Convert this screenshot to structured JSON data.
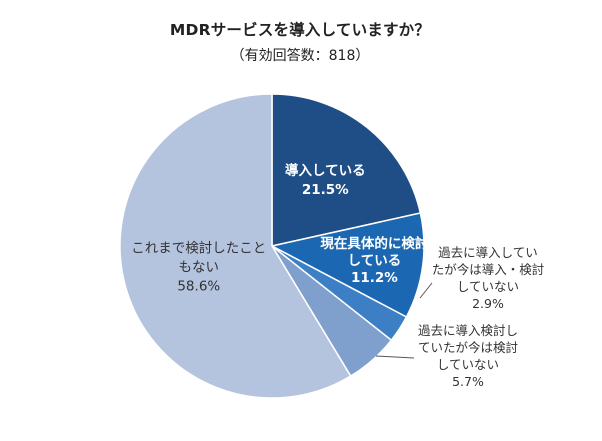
{
  "chart_data": {
    "type": "pie",
    "title": "MDRサービスを導入していますか？",
    "subtitle": "（有効回答数：818）",
    "start_angle_deg": 0,
    "direction": "clockwise",
    "slices": [
      {
        "label_lines": [
          "導入している"
        ],
        "value": 21.5,
        "value_label": "21.5%",
        "color": "#1f4e87",
        "label_placement": "inside",
        "label_color": "#ffffff"
      },
      {
        "label_lines": [
          "現在具体的に検討",
          "している"
        ],
        "value": 11.2,
        "value_label": "11.2%",
        "color": "#1c67b1",
        "label_placement": "inside",
        "label_color": "#ffffff"
      },
      {
        "label_lines": [
          "過去に導入してい",
          "たが今は導入・検討",
          "していない"
        ],
        "value": 2.9,
        "value_label": "2.9%",
        "color": "#3d7fc4",
        "label_placement": "outside",
        "label_color": "#333333"
      },
      {
        "label_lines": [
          "過去に導入検討し",
          "ていたが今は検討",
          "していない"
        ],
        "value": 5.7,
        "value_label": "5.7%",
        "color": "#7f9fcd",
        "label_placement": "outside",
        "label_color": "#333333"
      },
      {
        "label_lines": [
          "これまで検討したこと",
          "もない"
        ],
        "value": 58.6,
        "value_label": "58.6%",
        "color": "#b4c3de",
        "label_placement": "inside",
        "label_color": "#333333"
      }
    ]
  }
}
